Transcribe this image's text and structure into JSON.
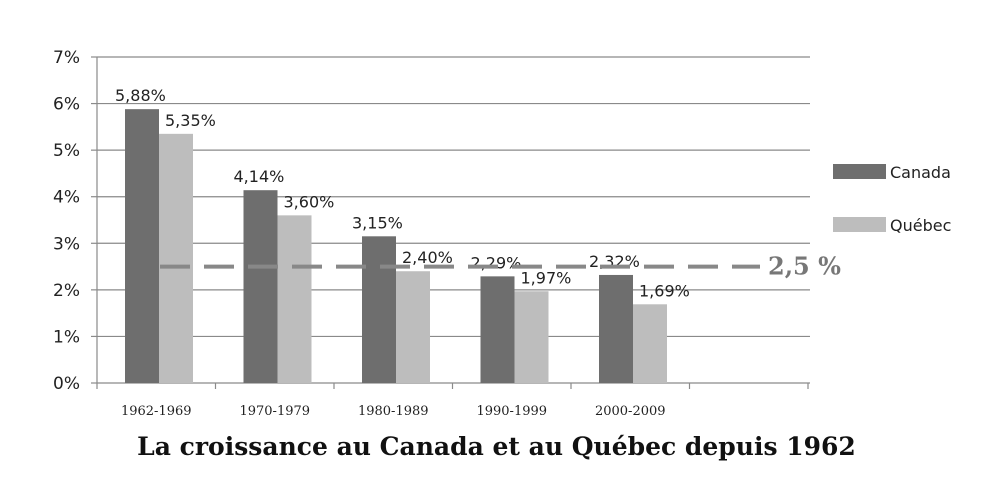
{
  "chart_data": {
    "type": "bar",
    "title": "La croissance au Canada et au Québec depuis 1962",
    "categories": [
      "1962-1969",
      "1970-1979",
      "1980-1989",
      "1990-1999",
      "2000-2009"
    ],
    "series": [
      {
        "name": "Canada",
        "values": [
          5.88,
          4.14,
          3.15,
          2.29,
          2.32
        ],
        "labels": [
          "5,88%",
          "4,14%",
          "3,15%",
          "2,29%",
          "2,32%"
        ],
        "color": "#6e6e6e"
      },
      {
        "name": "Québec",
        "values": [
          5.35,
          3.6,
          2.4,
          1.97,
          1.69
        ],
        "labels": [
          "5,35%",
          "3,60%",
          "2,40%",
          "1,97%",
          "1,69%"
        ],
        "color": "#bdbdbd"
      }
    ],
    "y_ticks": [
      "0%",
      "1%",
      "2%",
      "3%",
      "4%",
      "5%",
      "6%",
      "7%"
    ],
    "ylim": [
      0,
      7
    ],
    "grid": true,
    "legend_position": "right",
    "reference_line": {
      "value": 2.5,
      "label": "2,5 %",
      "color": "#888888"
    }
  }
}
